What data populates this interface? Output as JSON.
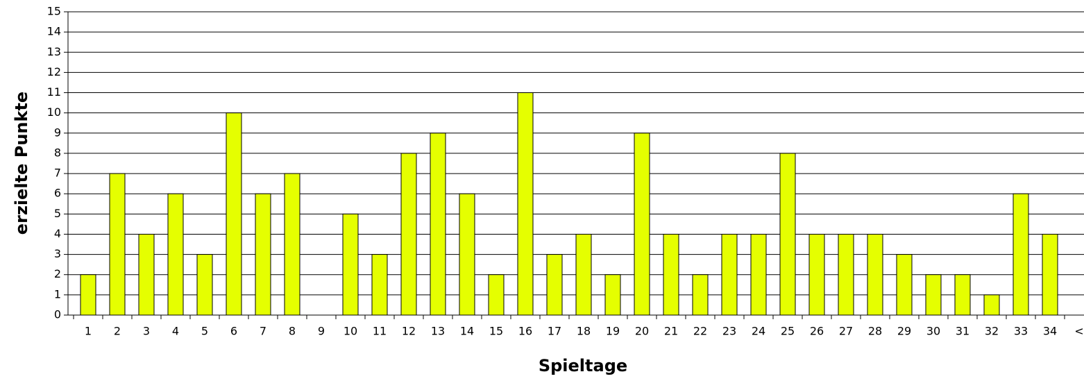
{
  "chart_data": {
    "type": "bar",
    "x_label": "Spieltage",
    "y_label": "erzielte Punkte",
    "categories": [
      "1",
      "2",
      "3",
      "4",
      "5",
      "6",
      "7",
      "8",
      "9",
      "10",
      "11",
      "12",
      "13",
      "14",
      "15",
      "16",
      "17",
      "18",
      "19",
      "20",
      "21",
      "22",
      "23",
      "24",
      "25",
      "26",
      "27",
      "28",
      "29",
      "30",
      "31",
      "32",
      "33",
      "34",
      "<"
    ],
    "values": [
      2,
      7,
      4,
      6,
      3,
      10,
      6,
      7,
      0,
      5,
      3,
      8,
      9,
      6,
      2,
      11,
      3,
      4,
      2,
      9,
      4,
      2,
      4,
      4,
      8,
      4,
      4,
      4,
      3,
      2,
      2,
      1,
      6,
      4,
      null
    ],
    "color": "#e5ff00",
    "ylim": [
      0,
      15
    ],
    "yticks": [
      0,
      1,
      2,
      3,
      4,
      5,
      6,
      7,
      8,
      9,
      10,
      11,
      12,
      13,
      14,
      15
    ],
    "grid": true
  }
}
